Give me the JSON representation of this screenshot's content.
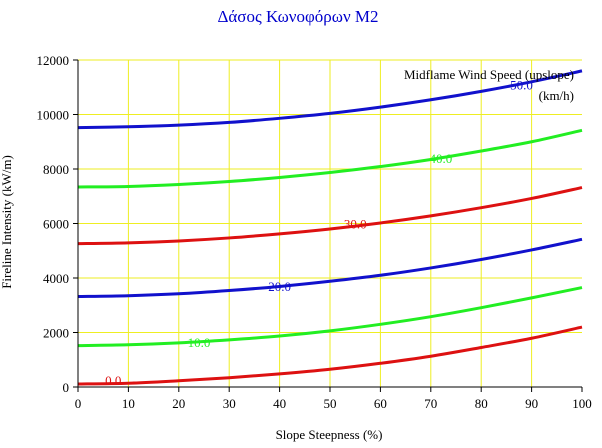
{
  "chart_data": {
    "type": "line",
    "title": "Δάσος Κωνοφόρων M2",
    "xlabel": "Slope Steepness (%)",
    "ylabel": "Fireline Intensity (kW/m)",
    "xlim": [
      0,
      100
    ],
    "ylim": [
      0,
      12000
    ],
    "xticks": [
      "0",
      "10",
      "20",
      "30",
      "40",
      "50",
      "60",
      "70",
      "80",
      "90",
      "100"
    ],
    "yticks": [
      "0",
      "2000",
      "4000",
      "6000",
      "8000",
      "10000",
      "12000"
    ],
    "grid": true,
    "legend_title": "Midflame Wind Speed (upslope)",
    "legend_unit": "(km/h)",
    "legend_placement": "top-right",
    "colors": {
      "title": "#0000cc",
      "grid": "#eeee22",
      "red": "#dd1111",
      "green": "#22ee22",
      "blue": "#1111cc"
    },
    "x": [
      0,
      10,
      20,
      30,
      40,
      50,
      60,
      70,
      80,
      90,
      100
    ],
    "series": [
      {
        "label": "0.0",
        "color": "#dd1111",
        "label_at": [
          7,
          250
        ],
        "values": [
          110,
          140,
          230,
          340,
          480,
          650,
          870,
          1130,
          1450,
          1790,
          2200
        ]
      },
      {
        "label": "10.0",
        "color": "#22ee22",
        "label_at": [
          24,
          1650
        ],
        "values": [
          1520,
          1550,
          1620,
          1730,
          1870,
          2060,
          2300,
          2580,
          2910,
          3270,
          3650
        ]
      },
      {
        "label": "20.0",
        "color": "#1111cc",
        "label_at": [
          40,
          3700
        ],
        "values": [
          3320,
          3350,
          3420,
          3540,
          3690,
          3880,
          4100,
          4370,
          4680,
          5030,
          5420
        ]
      },
      {
        "label": "30.0",
        "color": "#dd1111",
        "label_at": [
          55,
          6000
        ],
        "values": [
          5260,
          5290,
          5360,
          5470,
          5620,
          5800,
          6020,
          6280,
          6580,
          6920,
          7320
        ]
      },
      {
        "label": "40.0",
        "color": "#22ee22",
        "label_at": [
          72,
          8400
        ],
        "values": [
          7340,
          7360,
          7430,
          7540,
          7690,
          7870,
          8090,
          8350,
          8660,
          9000,
          9420
        ]
      },
      {
        "label": "50.0",
        "color": "#1111cc",
        "label_at": [
          88,
          11100
        ],
        "values": [
          9520,
          9550,
          9610,
          9710,
          9860,
          10040,
          10270,
          10540,
          10850,
          11200,
          11600
        ]
      }
    ]
  }
}
